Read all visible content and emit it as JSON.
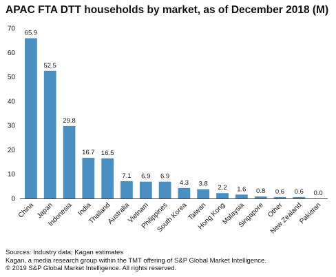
{
  "chart_data": {
    "type": "bar",
    "title": "APAC FTA DTT households by market, as of December 2018 (M)",
    "categories": [
      "China",
      "Japan",
      "Indonesia",
      "India",
      "Thailand",
      "Australia",
      "Vietnam",
      "Philippines",
      "South Korea",
      "Taiwan",
      "Hong Kong",
      "Malaysia",
      "Singapore",
      "Other",
      "New Zealand",
      "Pakistan"
    ],
    "values": [
      65.9,
      52.5,
      29.8,
      16.7,
      16.5,
      7.1,
      6.9,
      6.9,
      4.3,
      3.8,
      2.2,
      1.6,
      0.8,
      0.6,
      0.6,
      0.0
    ],
    "value_labels": [
      "65.9",
      "52.5",
      "29.8",
      "16.7",
      "16.5",
      "7.1",
      "6.9",
      "6.9",
      "4.3",
      "3.8",
      "2.2",
      "1.6",
      "0.8",
      "0.6",
      "0.6",
      "0.0"
    ],
    "ylim": [
      0,
      70
    ],
    "yticks": [
      "0",
      "10",
      "20",
      "30",
      "40",
      "50",
      "60",
      "70"
    ],
    "xlabel": "",
    "ylabel": "",
    "grid": false,
    "bar_color": "#4a8fc2"
  },
  "footer": {
    "sources": "Sources: Industry data; Kagan estimates",
    "kagan": "Kagan, a media research group within the TMT offering of S&P Global Market Intelligence.",
    "copyright": "© 2019 S&P Global Market Intelligence. All rights reserved."
  }
}
